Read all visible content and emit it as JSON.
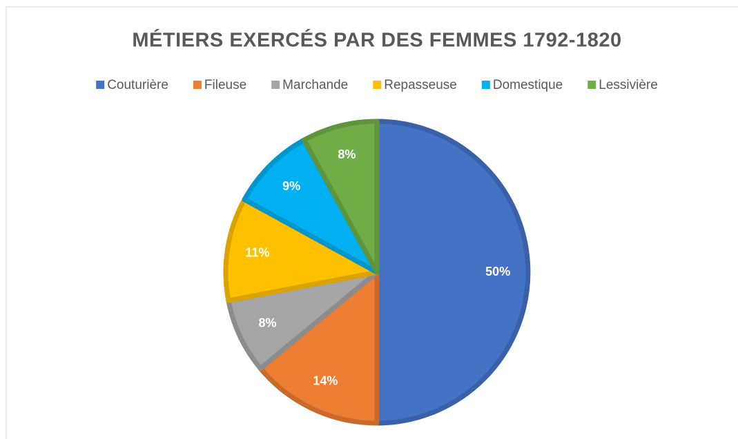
{
  "chart_data": {
    "type": "pie",
    "title": "MÉTIERS EXERCÉS PAR DES FEMMES 1792-1820",
    "categories": [
      "Couturière",
      "Fileuse",
      "Marchande",
      "Repasseuse",
      "Domestique",
      "Lessivière"
    ],
    "values": [
      50,
      14,
      8,
      11,
      9,
      8
    ],
    "value_labels": [
      "50%",
      "14%",
      "8%",
      "11%",
      "9%",
      "8%"
    ],
    "colors": [
      "#4472c4",
      "#ed7d31",
      "#a5a5a5",
      "#ffc000",
      "#00b0f0",
      "#70ad47"
    ],
    "legend": "top"
  }
}
